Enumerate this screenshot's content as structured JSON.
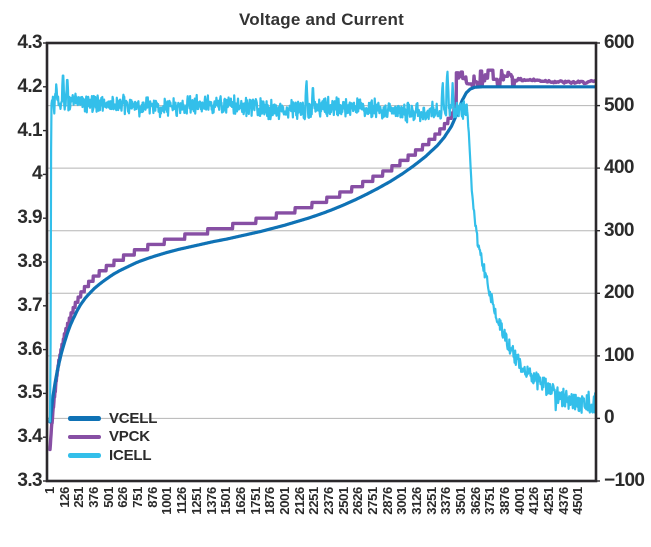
{
  "title": "Voltage and Current",
  "colors": {
    "vcell": "#0f72b5",
    "vpck": "#874fa4",
    "icell": "#33bfea",
    "grid": "#b5b5b5",
    "frame": "#2b292c",
    "text": "#2b2b2b",
    "title_text": "#333333"
  },
  "chart_data": {
    "type": "line",
    "title": "Voltage and Current",
    "x_axis": {
      "min": 1,
      "max": 4651,
      "label_rotation_deg": -90,
      "tick_labels": [
        "1",
        "126",
        "251",
        "376",
        "501",
        "626",
        "751",
        "876",
        "1001",
        "1126",
        "1251",
        "1376",
        "1501",
        "1626",
        "1751",
        "1876",
        "2001",
        "2126",
        "2251",
        "2376",
        "2501",
        "2626",
        "2751",
        "2876",
        "3001",
        "3126",
        "3251",
        "3376",
        "3501",
        "3626",
        "3751",
        "3876",
        "4001",
        "4126",
        "4251",
        "4376",
        "4501"
      ]
    },
    "left_y_axis": {
      "unit": "V",
      "min": 3.3,
      "max": 4.3,
      "tick_labels": [
        "4.3",
        "4.2",
        "4.1",
        "4",
        "3.9",
        "3.8",
        "3.7",
        "3.6",
        "3.5",
        "3.4",
        "3.3"
      ],
      "tick_values": [
        4.3,
        4.2,
        4.1,
        4.0,
        3.9,
        3.8,
        3.7,
        3.6,
        3.5,
        3.4,
        3.3
      ]
    },
    "right_y_axis": {
      "unit": "mA",
      "min": -100,
      "max": 600,
      "tick_labels": [
        "600",
        "500",
        "400",
        "300",
        "200",
        "100",
        "0",
        "−100"
      ],
      "tick_values": [
        600,
        500,
        400,
        300,
        200,
        100,
        0,
        -100
      ]
    },
    "grid": {
      "horizontal_at_right_axis_values": [
        500,
        400,
        300,
        200,
        100,
        0
      ]
    },
    "legend": {
      "position": "inside-bottom-left",
      "entries": [
        {
          "label": "VCELL",
          "color": "#0f72b5"
        },
        {
          "label": "VPCK",
          "color": "#874fa4"
        },
        {
          "label": "ICELL",
          "color": "#33bfea"
        }
      ]
    },
    "noise_seed": 42,
    "series": [
      {
        "name": "VCELL",
        "axis": "left",
        "style": "smooth",
        "color": "#0f72b5",
        "stroke_width": 3.2,
        "control_points": [
          [
            1,
            3.435
          ],
          [
            12,
            3.462
          ],
          [
            25,
            3.49
          ],
          [
            40,
            3.517
          ],
          [
            60,
            3.547
          ],
          [
            80,
            3.572
          ],
          [
            100,
            3.594
          ],
          [
            125,
            3.617
          ],
          [
            150,
            3.638
          ],
          [
            175,
            3.656
          ],
          [
            200,
            3.671
          ],
          [
            230,
            3.688
          ],
          [
            260,
            3.702
          ],
          [
            300,
            3.717
          ],
          [
            340,
            3.729
          ],
          [
            380,
            3.74
          ],
          [
            430,
            3.751
          ],
          [
            480,
            3.761
          ],
          [
            540,
            3.772
          ],
          [
            600,
            3.781
          ],
          [
            670,
            3.79
          ],
          [
            740,
            3.799
          ],
          [
            820,
            3.807
          ],
          [
            900,
            3.814
          ],
          [
            1000,
            3.822
          ],
          [
            1100,
            3.829
          ],
          [
            1200,
            3.835
          ],
          [
            1300,
            3.841
          ],
          [
            1400,
            3.847
          ],
          [
            1500,
            3.852
          ],
          [
            1600,
            3.858
          ],
          [
            1700,
            3.864
          ],
          [
            1800,
            3.87
          ],
          [
            1900,
            3.877
          ],
          [
            2000,
            3.884
          ],
          [
            2100,
            3.892
          ],
          [
            2200,
            3.9
          ],
          [
            2300,
            3.909
          ],
          [
            2400,
            3.919
          ],
          [
            2500,
            3.93
          ],
          [
            2600,
            3.942
          ],
          [
            2700,
            3.955
          ],
          [
            2800,
            3.969
          ],
          [
            2900,
            3.984
          ],
          [
            3000,
            4.001
          ],
          [
            3100,
            4.02
          ],
          [
            3200,
            4.041
          ],
          [
            3300,
            4.066
          ],
          [
            3360,
            4.085
          ],
          [
            3420,
            4.11
          ],
          [
            3470,
            4.14
          ],
          [
            3510,
            4.168
          ],
          [
            3545,
            4.186
          ],
          [
            3580,
            4.195
          ],
          [
            3620,
            4.199
          ],
          [
            3680,
            4.2
          ],
          [
            4651,
            4.2
          ]
        ]
      },
      {
        "name": "VPCK",
        "axis": "left",
        "style": "stair-quantized",
        "color": "#874fa4",
        "stroke_width": 3.4,
        "base_series": "VCELL",
        "offset_points": [
          [
            1,
            -0.058
          ],
          [
            35,
            -0.025
          ],
          [
            70,
            0.002
          ],
          [
            120,
            0.015
          ],
          [
            200,
            0.021
          ],
          [
            350,
            0.025
          ],
          [
            1000,
            0.026
          ],
          [
            2000,
            0.027
          ],
          [
            3000,
            0.028
          ],
          [
            3462,
            0.024
          ]
        ],
        "quantize_step_v": 0.012,
        "cv_phase": {
          "start_x": 3462,
          "spiky_until_x": 3960,
          "spike_min_v": 4.2,
          "spike_max_v": 4.238,
          "settle_v": 4.213,
          "end_v": 4.215
        }
      },
      {
        "name": "ICELL",
        "axis": "right",
        "style": "noisy-band",
        "color": "#33bfea",
        "stroke_width": 2.2,
        "startup_points": [
          [
            1,
            -5
          ],
          [
            6,
            120
          ],
          [
            10,
            430
          ]
        ],
        "band": {
          "start_x": 14,
          "end_x": 3555,
          "base_start": 503,
          "base_end": 491,
          "noise_amp": 18
        },
        "spikes": [
          [
            55,
            538
          ],
          [
            112,
            556
          ],
          [
            148,
            549
          ],
          [
            2185,
            543
          ],
          [
            2240,
            536
          ],
          [
            3345,
            540
          ],
          [
            3385,
            558
          ],
          [
            3430,
            536
          ]
        ],
        "decay_points": [
          [
            3555,
            490
          ],
          [
            3570,
            445
          ],
          [
            3585,
            395
          ],
          [
            3600,
            350
          ],
          [
            3620,
            310
          ],
          [
            3650,
            276
          ],
          [
            3700,
            236
          ],
          [
            3750,
            200
          ],
          [
            3800,
            168
          ],
          [
            3850,
            143
          ],
          [
            3900,
            120
          ],
          [
            3950,
            102
          ],
          [
            4000,
            88
          ],
          [
            4060,
            75
          ],
          [
            4120,
            64
          ],
          [
            4180,
            56
          ],
          [
            4240,
            48
          ],
          [
            4300,
            40
          ],
          [
            4360,
            33
          ],
          [
            4420,
            30
          ],
          [
            4480,
            27
          ],
          [
            4540,
            25
          ],
          [
            4600,
            26
          ],
          [
            4651,
            24
          ]
        ],
        "tail_dips": [
          [
            4310,
            22
          ],
          [
            4435,
            25
          ]
        ],
        "decay_noise_amp": [
          8,
          18
        ]
      }
    ]
  }
}
